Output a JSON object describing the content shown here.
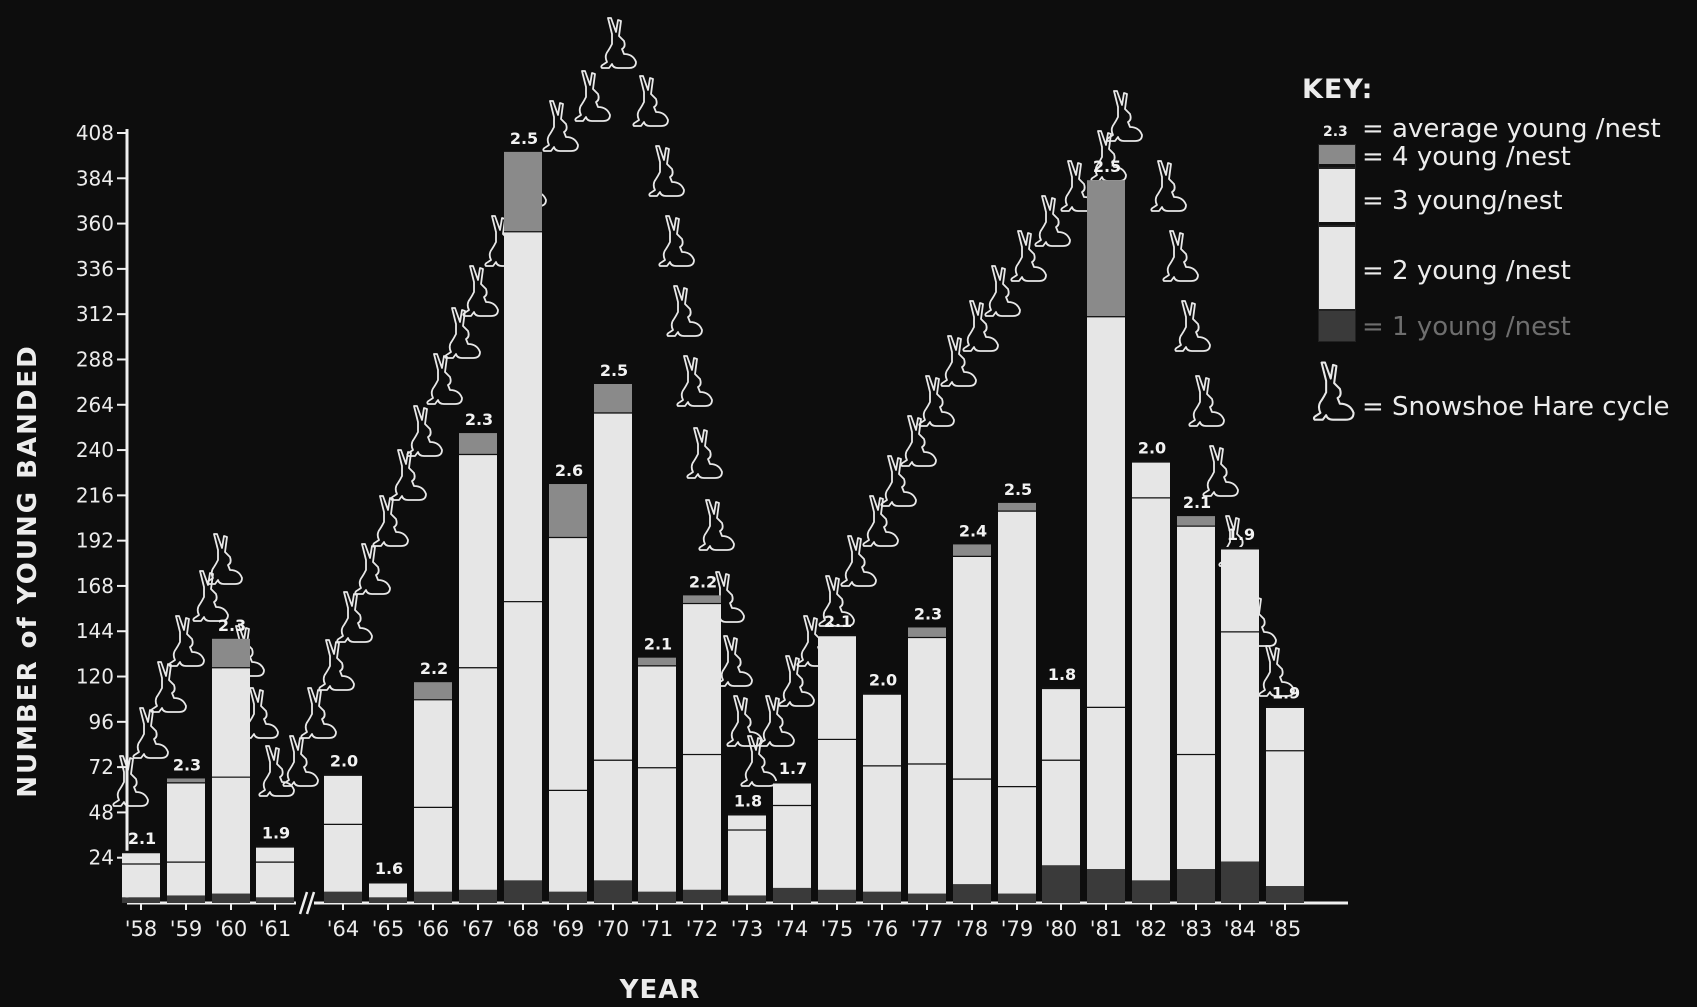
{
  "chart_data": {
    "type": "bar",
    "subtype": "stacked",
    "ylabel": "NUMBER of YOUNG BANDED",
    "xlabel": "YEAR",
    "ylim": [
      0,
      408
    ],
    "yticks": [
      24,
      48,
      72,
      96,
      120,
      144,
      168,
      192,
      216,
      240,
      264,
      288,
      312,
      336,
      360,
      384,
      408
    ],
    "categories": [
      "'58",
      "'59",
      "'60",
      "'61",
      "'64",
      "'65",
      "'66",
      "'67",
      "'68",
      "'69",
      "'70",
      "'71",
      "'72",
      "'73",
      "'74",
      "'75",
      "'76",
      "'77",
      "'78",
      "'79",
      "'80",
      "'81",
      "'82",
      "'83",
      "'84",
      "'85"
    ],
    "series": [
      {
        "name": "1 young/nest",
        "values": [
          3,
          4,
          5,
          3,
          6,
          3,
          6,
          7,
          12,
          6,
          12,
          6,
          7,
          4,
          8,
          7,
          6,
          5,
          10,
          5,
          20,
          18,
          12,
          18,
          22,
          9
        ]
      },
      {
        "name": "2 young/nest",
        "values": [
          18,
          18,
          62,
          19,
          36,
          8,
          45,
          118,
          148,
          54,
          64,
          66,
          72,
          35,
          44,
          80,
          67,
          69,
          56,
          57,
          56,
          86,
          203,
          61,
          122,
          72
        ]
      },
      {
        "name": "3 young/nest",
        "values": [
          6,
          42,
          58,
          8,
          26,
          0,
          57,
          113,
          196,
          134,
          184,
          54,
          80,
          8,
          12,
          55,
          38,
          67,
          118,
          146,
          38,
          207,
          19,
          121,
          44,
          23
        ]
      },
      {
        "name": "4 young/nest",
        "values": [
          0,
          2,
          15,
          0,
          0,
          0,
          9,
          11,
          42,
          28,
          15,
          4,
          4,
          0,
          0,
          0,
          0,
          5,
          6,
          4,
          0,
          72,
          0,
          5,
          0,
          0
        ]
      }
    ],
    "averages": [
      "2.1",
      "2.3",
      "2.3",
      "1.9",
      "2.0",
      "1.6",
      "2.2",
      "2.3",
      "2.5",
      "2.6",
      "2.5",
      "2.1",
      "2.2",
      "1.8",
      "1.7",
      "2.1",
      "2.0",
      "2.3",
      "2.4",
      "2.5",
      "1.8",
      "2.5",
      "2.0",
      "2.1",
      "1.9",
      "1.9"
    ],
    "hare_cycle_peaks": [
      "'60",
      "'69",
      "'81"
    ],
    "legend_position": "top-right"
  },
  "key": {
    "title": "KEY:",
    "avg_sample": "2.3",
    "avg": "= average young /nest",
    "four": "= 4  young /nest",
    "three": "= 3  young/nest",
    "two": "= 2 young /nest",
    "one": "= 1 young /nest",
    "hare": "= Snowshoe  Hare  cycle"
  },
  "colors": {
    "background": "#0d0d0d",
    "bar_light": "#e6e6e6",
    "bar_dark": "#3a3a3a",
    "bar_mid": "#8a8a8a",
    "axis": "#eeeeee"
  }
}
